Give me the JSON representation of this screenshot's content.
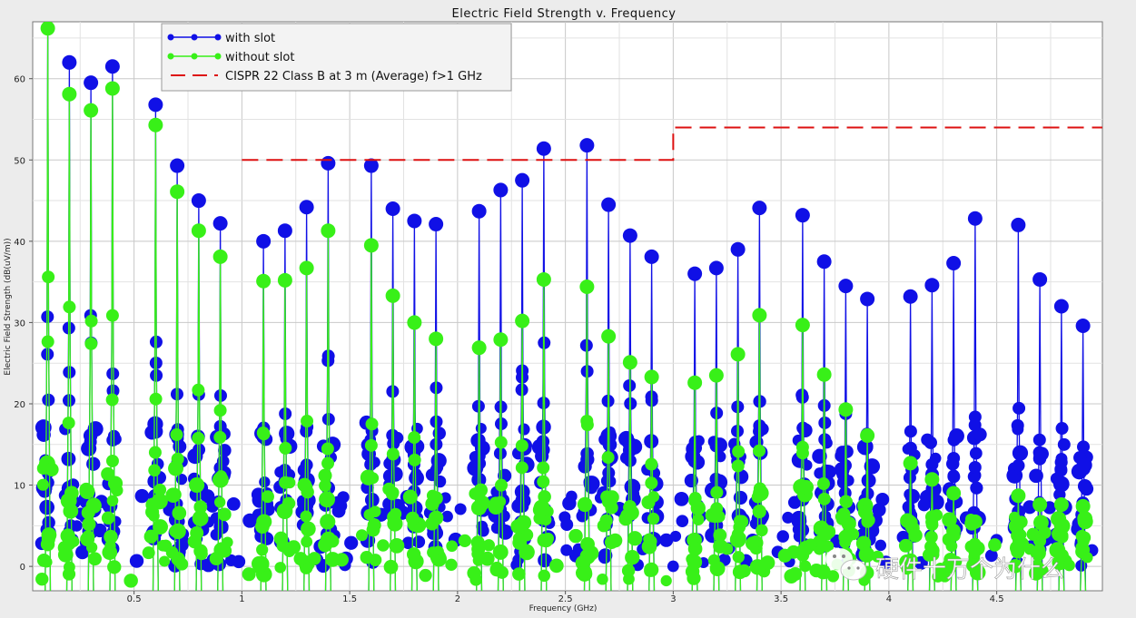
{
  "chart_data": {
    "type": "line",
    "title": "Electric Field Strength v. Frequency",
    "xlabel": "Frequency (GHz)",
    "ylabel": "Electric Field Strength (dB(uV/m))",
    "xlim": [
      0.03,
      4.99
    ],
    "ylim": [
      -3,
      67
    ],
    "x_ticks": [
      0.5,
      1,
      1.5,
      2,
      2.5,
      3,
      3.5,
      4,
      4.5
    ],
    "x_tick_labels": [
      "0.5",
      "1",
      "1.5",
      "2",
      "2.5",
      "3",
      "3.5",
      "4",
      "4.5"
    ],
    "y_ticks": [
      0,
      10,
      20,
      30,
      40,
      50,
      60
    ],
    "y_tick_labels": [
      "0",
      "10",
      "20",
      "30",
      "40",
      "50",
      "60"
    ],
    "grid": true,
    "legend_position": "top-left",
    "series": [
      {
        "name": "with slot",
        "color": "#1010e6",
        "style": "line-markers",
        "peaks": [
          [
            0.1,
            68
          ],
          [
            0.2,
            62
          ],
          [
            0.3,
            59.5
          ],
          [
            0.4,
            61.5
          ],
          [
            0.6,
            56.8
          ],
          [
            0.7,
            49.3
          ],
          [
            0.8,
            45
          ],
          [
            0.9,
            42.2
          ],
          [
            1.1,
            40
          ],
          [
            1.2,
            41.3
          ],
          [
            1.3,
            44.2
          ],
          [
            1.4,
            49.6
          ],
          [
            1.6,
            49.3
          ],
          [
            1.7,
            44
          ],
          [
            1.8,
            42.5
          ],
          [
            1.9,
            42.1
          ],
          [
            2.1,
            43.7
          ],
          [
            2.2,
            46.3
          ],
          [
            2.3,
            47.5
          ],
          [
            2.4,
            51.4
          ],
          [
            2.6,
            51.8
          ],
          [
            2.7,
            44.5
          ],
          [
            2.8,
            40.7
          ],
          [
            2.9,
            38.1
          ],
          [
            3.1,
            36
          ],
          [
            3.2,
            36.7
          ],
          [
            3.3,
            39
          ],
          [
            3.4,
            44.1
          ],
          [
            3.6,
            43.2
          ],
          [
            3.7,
            37.5
          ],
          [
            3.8,
            34.5
          ],
          [
            3.9,
            32.9
          ],
          [
            4.1,
            33.2
          ],
          [
            4.2,
            34.6
          ],
          [
            4.3,
            37.3
          ],
          [
            4.4,
            42.8
          ],
          [
            4.6,
            42
          ],
          [
            4.7,
            35.3
          ],
          [
            4.8,
            32
          ],
          [
            4.9,
            29.6
          ]
        ]
      },
      {
        "name": "without slot",
        "color": "#38f018",
        "style": "line-markers",
        "peaks": [
          [
            0.1,
            66.2
          ],
          [
            0.2,
            58.1
          ],
          [
            0.3,
            56.1
          ],
          [
            0.4,
            58.8
          ],
          [
            0.6,
            54.3
          ],
          [
            0.7,
            46.1
          ],
          [
            0.8,
            41.3
          ],
          [
            0.9,
            38.1
          ],
          [
            1.1,
            35.1
          ],
          [
            1.2,
            35.2
          ],
          [
            1.3,
            36.7
          ],
          [
            1.4,
            41.3
          ],
          [
            1.6,
            39.5
          ],
          [
            1.7,
            33.3
          ],
          [
            1.8,
            30
          ],
          [
            1.9,
            28
          ],
          [
            2.1,
            26.9
          ],
          [
            2.2,
            27.9
          ],
          [
            2.3,
            30.2
          ],
          [
            2.4,
            35.3
          ],
          [
            2.6,
            34.4
          ],
          [
            2.7,
            28.3
          ],
          [
            2.8,
            25.1
          ],
          [
            2.9,
            23.3
          ],
          [
            3.1,
            22.6
          ],
          [
            3.2,
            23.5
          ],
          [
            3.3,
            26.1
          ],
          [
            3.4,
            30.9
          ],
          [
            3.6,
            29.7
          ],
          [
            3.7,
            23.6
          ],
          [
            3.8,
            19.3
          ],
          [
            3.9,
            16.1
          ],
          [
            4.1,
            12.7
          ],
          [
            4.2,
            10.7
          ],
          [
            4.3,
            9
          ],
          [
            4.4,
            5.5
          ],
          [
            4.6,
            8.7
          ],
          [
            4.7,
            7.6
          ],
          [
            4.8,
            7.6
          ],
          [
            4.9,
            7.4
          ]
        ]
      },
      {
        "name": "CISPR 22 Class B at 3 m (Average) f>1 GHz",
        "color": "#dd1111",
        "style": "dashed",
        "x": [
          1.0,
          3.0,
          3.0,
          5.0
        ],
        "y": [
          50,
          50,
          54,
          54
        ]
      }
    ]
  },
  "legend": {
    "items": [
      {
        "label": "with slot",
        "color": "#1010e6",
        "marker": true
      },
      {
        "label": "without slot",
        "color": "#38f018",
        "marker": true
      },
      {
        "label": "CISPR 22 Class B at 3 m (Average) f>1 GHz",
        "color": "#dd1111",
        "marker": false
      }
    ]
  },
  "watermark": {
    "text": "硬件十万个为什么",
    "icon": "wechat-icon"
  }
}
